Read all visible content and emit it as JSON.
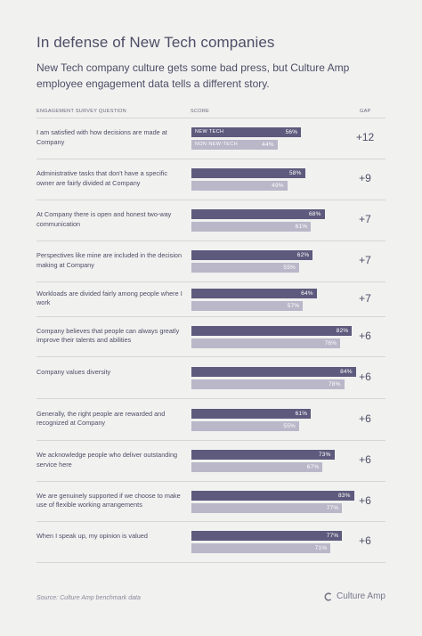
{
  "title": "In defense of New Tech companies",
  "subtitle": "New Tech company culture gets some bad press, but Culture Amp employee engagement data tells a different story.",
  "headers": {
    "question": "ENGAGEMENT   SURVEY  QUESTION",
    "score": "SCORE",
    "gap": "GAP"
  },
  "source": "Source: Culture Amp benchmark data",
  "brand": {
    "name": "Culture Amp",
    "icon": "culture-amp-logo-icon"
  },
  "colors": {
    "new_tech": "#5e5a7d",
    "non_new_tech": "#b9b7c8",
    "background": "#f1f1f0"
  },
  "chart_data": {
    "type": "bar",
    "orientation": "horizontal",
    "value_unit": "%",
    "ylim": [
      0,
      100
    ],
    "series_names": [
      "NEW TECH",
      "NON NEW-TECH"
    ],
    "categories": [
      "I am satisfied with how decisions are made at Company",
      "Administrative tasks that don't have a specific owner are fairly divided at Company",
      "At Company there is open and honest two-way communication",
      "Perspectives like mine are included in the decision making at Company",
      "Workloads are divided fairly among people where I work",
      "Company believes that people can always greatly improve their talents and abilities",
      "Company values diversity",
      "Generally, the right people are rewarded and recognized at Company",
      "We acknowledge people who deliver outstanding service here",
      "We are genuinely supported if we choose to make use of flexible working arrangements",
      "When I speak up, my opinion is valued"
    ],
    "series": [
      {
        "name": "NEW TECH",
        "values": [
          56,
          58,
          68,
          62,
          64,
          82,
          84,
          61,
          73,
          83,
          77
        ]
      },
      {
        "name": "NON NEW-TECH",
        "values": [
          44,
          49,
          61,
          55,
          57,
          76,
          78,
          55,
          67,
          77,
          71
        ]
      }
    ],
    "gaps": [
      "+12",
      "+9",
      "+7",
      "+7",
      "+7",
      "+6",
      "+6",
      "+6",
      "+6",
      "+6",
      "+6"
    ]
  }
}
